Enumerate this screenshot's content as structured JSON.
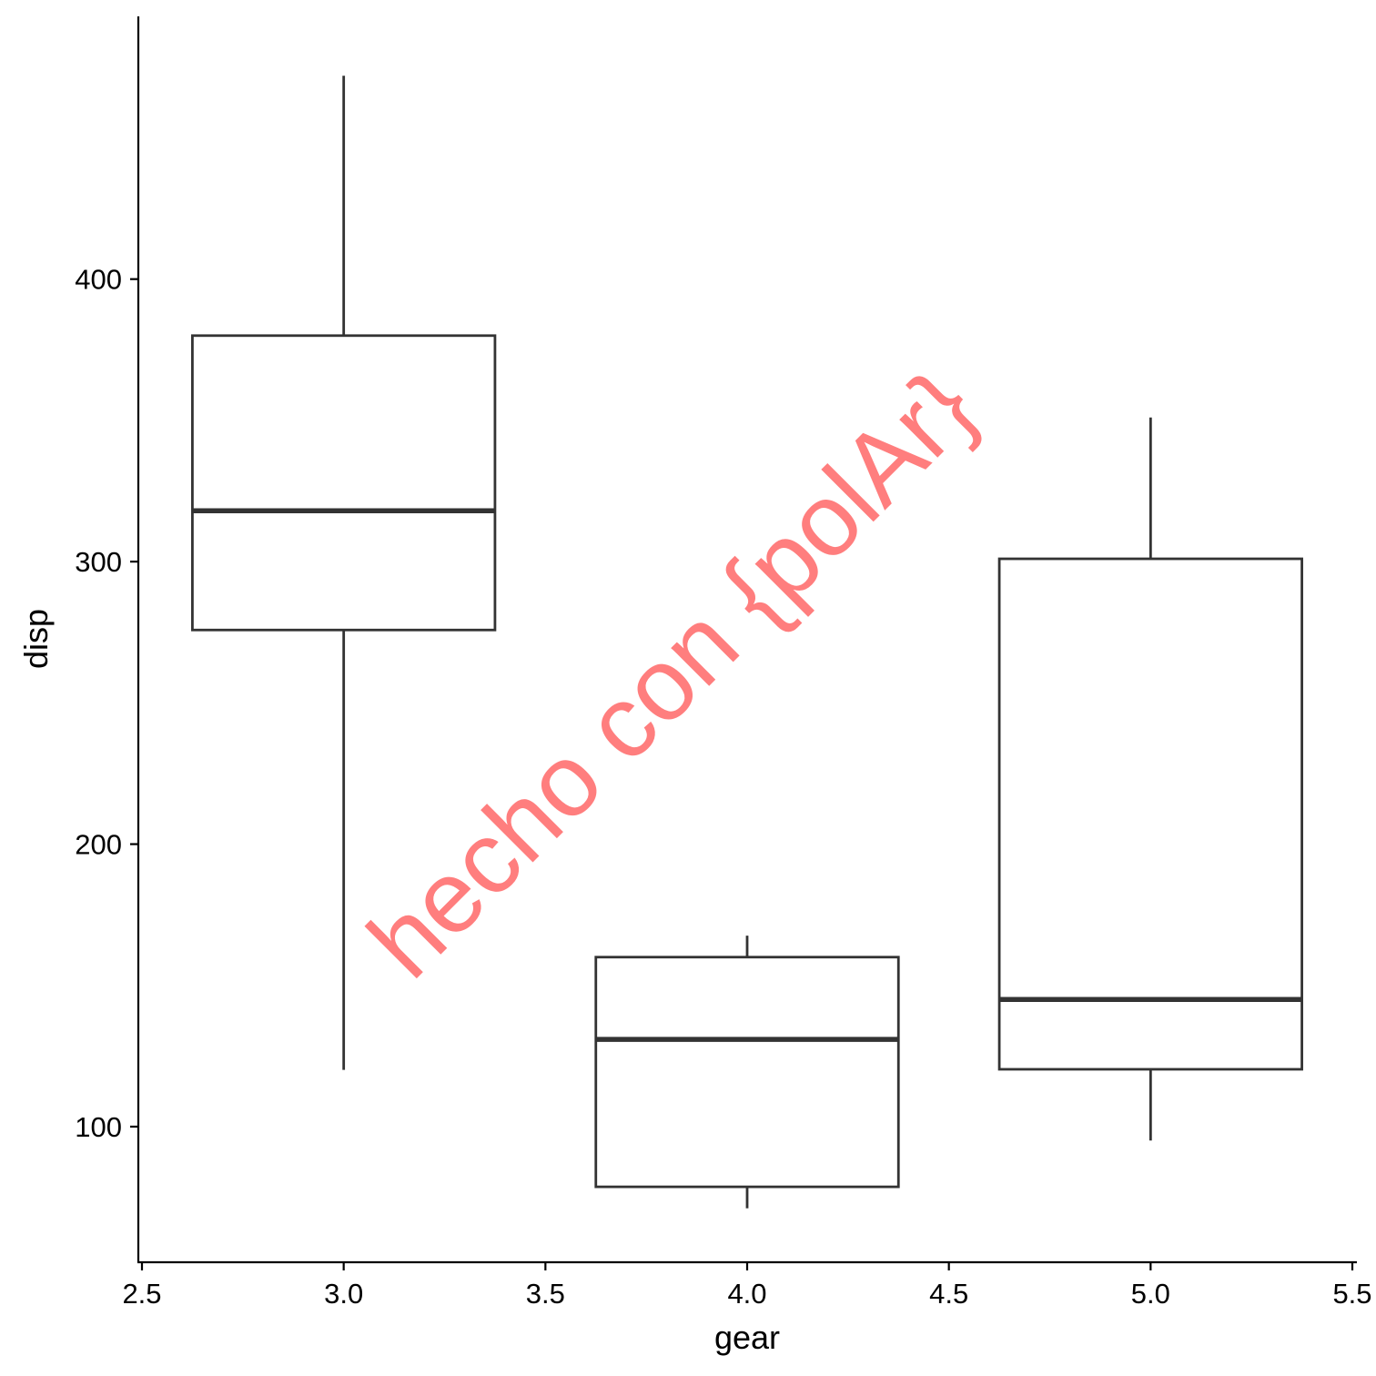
{
  "chart_data": {
    "type": "boxplot",
    "title": "",
    "xlabel": "gear",
    "ylabel": "disp",
    "xlim": [
      2.5,
      5.5
    ],
    "ylim": [
      52,
      493
    ],
    "x_ticks": [
      2.5,
      3.0,
      3.5,
      4.0,
      4.5,
      5.0,
      5.5
    ],
    "x_tick_labels": [
      "2.5",
      "3.0",
      "3.5",
      "4.0",
      "4.5",
      "5.0",
      "5.5"
    ],
    "y_ticks": [
      100,
      200,
      300,
      400
    ],
    "y_tick_labels": [
      "100",
      "200",
      "300",
      "400"
    ],
    "grid": false,
    "box_width": 0.75,
    "boxes": [
      {
        "x": 3.0,
        "whisker_low": 120.1,
        "q1": 275.8,
        "median": 318.0,
        "q3": 380.0,
        "whisker_high": 472.0
      },
      {
        "x": 4.0,
        "whisker_low": 71.1,
        "q1": 78.7,
        "median": 130.9,
        "q3": 160.0,
        "whisker_high": 167.6
      },
      {
        "x": 5.0,
        "whisker_low": 95.1,
        "q1": 120.3,
        "median": 145.0,
        "q3": 301.0,
        "whisker_high": 351.0
      }
    ],
    "watermark": {
      "text": "hecho con {polAr}",
      "color": "#ff0000"
    }
  }
}
